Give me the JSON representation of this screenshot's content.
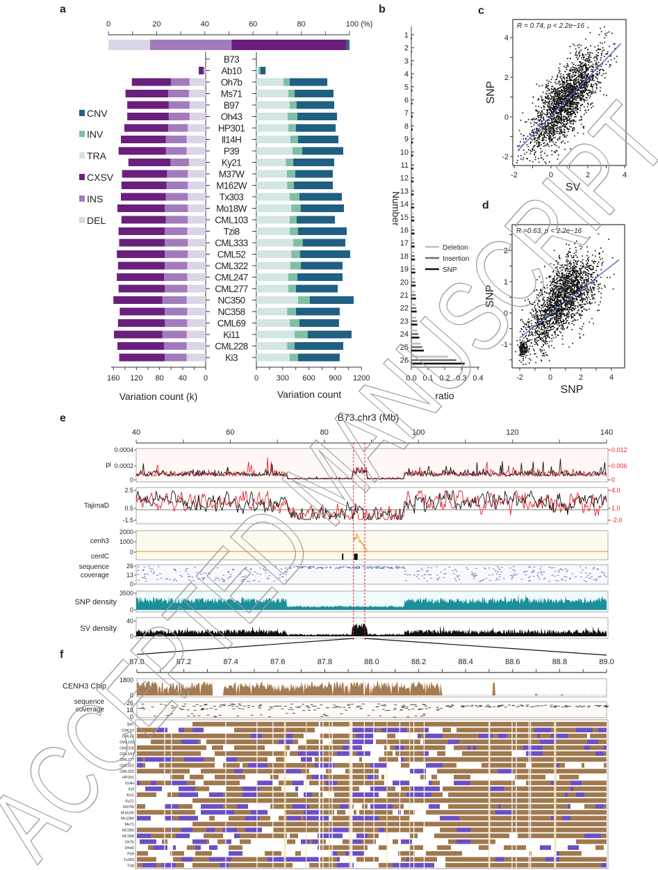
{
  "watermark": "ACCEPTED MANUSCRIPT",
  "panel_labels": {
    "a": "a",
    "b": "b",
    "c": "c",
    "d": "d",
    "e": "e",
    "f": "f"
  },
  "chart_data": [
    {
      "id": "a-top",
      "type": "bar",
      "orientation": "horizontal-stacked",
      "categories": [
        "DEL",
        "INS",
        "CXSV",
        "TRA/INV/CNV"
      ],
      "values": [
        17.3,
        33.8,
        47.7,
        1.2
      ],
      "unit": "%",
      "xlim": [
        0,
        100
      ],
      "ticks": [
        0,
        20,
        40,
        60,
        80,
        100
      ],
      "tick_labels": [
        "0",
        "20",
        "40",
        "60",
        "80",
        "100 (%)"
      ],
      "colors": [
        "#dcd5e8",
        "#a27bbd",
        "#6a1f7d",
        "#2c6a8a"
      ]
    },
    {
      "id": "a",
      "type": "bar",
      "orientation": "horizontal-stacked-diverging",
      "accessions": [
        {
          "name": "B73",
          "left": [
            0,
            0,
            0
          ],
          "right": [
            0,
            0,
            0
          ]
        },
        {
          "name": "Ab10",
          "left": [
            2,
            2,
            8
          ],
          "right": [
            25,
            20,
            60
          ]
        },
        {
          "name": "Oh7b",
          "left": [
            28,
            32,
            68
          ],
          "right": [
            310,
            70,
            430
          ]
        },
        {
          "name": "Ms71",
          "left": [
            29,
            36,
            74
          ],
          "right": [
            365,
            72,
            444
          ]
        },
        {
          "name": "B97",
          "left": [
            28,
            36,
            72
          ],
          "right": [
            381,
            79,
            429
          ]
        },
        {
          "name": "Oh43",
          "left": [
            28,
            36,
            72
          ],
          "right": [
            357,
            111,
            453
          ]
        },
        {
          "name": "HP301",
          "left": [
            31,
            34,
            76
          ],
          "right": [
            365,
            87,
            453
          ]
        },
        {
          "name": "Il14H",
          "left": [
            33,
            36,
            78
          ],
          "right": [
            389,
            87,
            461
          ]
        },
        {
          "name": "P39",
          "left": [
            33,
            36,
            82
          ],
          "right": [
            413,
            111,
            468
          ]
        },
        {
          "name": "Ky21",
          "left": [
            29,
            32,
            73
          ],
          "right": [
            336,
            85,
            468
          ]
        },
        {
          "name": "M37W",
          "left": [
            31,
            36,
            78
          ],
          "right": [
            349,
            95,
            429
          ]
        },
        {
          "name": "M162W",
          "left": [
            31,
            37,
            78
          ],
          "right": [
            352,
            77,
            444
          ]
        },
        {
          "name": "Tx303",
          "left": [
            31,
            38,
            78
          ],
          "right": [
            381,
            111,
            484
          ]
        },
        {
          "name": "Mo18W",
          "left": [
            31,
            40,
            82
          ],
          "right": [
            400,
            105,
            495
          ]
        },
        {
          "name": "CML103",
          "left": [
            31,
            38,
            77
          ],
          "right": [
            381,
            79,
            437
          ]
        },
        {
          "name": "Tzi8",
          "left": [
            32,
            39,
            80
          ],
          "right": [
            381,
            95,
            556
          ]
        },
        {
          "name": "CML333",
          "left": [
            31,
            40,
            79
          ],
          "right": [
            421,
            108,
            487
          ]
        },
        {
          "name": "CML52",
          "left": [
            31,
            40,
            83
          ],
          "right": [
            400,
            100,
            571
          ]
        },
        {
          "name": "CML322",
          "left": [
            32,
            39,
            81
          ],
          "right": [
            389,
            119,
            476
          ]
        },
        {
          "name": "CML247",
          "left": [
            32,
            40,
            82
          ],
          "right": [
            365,
            103,
            516
          ]
        },
        {
          "name": "CML277",
          "left": [
            32,
            39,
            80
          ],
          "right": [
            365,
            87,
            477
          ]
        },
        {
          "name": "NC350",
          "left": [
            33,
            42,
            85
          ],
          "right": [
            476,
            135,
            500
          ]
        },
        {
          "name": "NC358",
          "left": [
            32,
            39,
            78
          ],
          "right": [
            352,
            100,
            500
          ]
        },
        {
          "name": "CML69",
          "left": [
            32,
            39,
            81
          ],
          "right": [
            381,
            111,
            452
          ]
        },
        {
          "name": "Ki11",
          "left": [
            33,
            42,
            84
          ],
          "right": [
            437,
            150,
            500
          ]
        },
        {
          "name": "CML228",
          "left": [
            33,
            39,
            81
          ],
          "right": [
            352,
            85,
            555
          ]
        },
        {
          "name": "Ki3",
          "left": [
            33,
            38,
            79
          ],
          "right": [
            381,
            95,
            476
          ]
        }
      ],
      "left": {
        "series": [
          "DEL",
          "INS",
          "CXSV"
        ],
        "xlabel": "Variation count (k)",
        "xlim": [
          0,
          160
        ],
        "ticks": [
          160,
          120,
          80,
          40,
          0
        ],
        "tick_labels": [
          "160",
          "120",
          "80",
          "40",
          "0"
        ]
      },
      "right": {
        "series": [
          "TRA",
          "INV",
          "CNV"
        ],
        "xlabel": "Variation count",
        "xlim": [
          0,
          1200
        ],
        "ticks": [
          0,
          300,
          600,
          900,
          1200
        ],
        "tick_labels": [
          "0",
          "300",
          "600",
          "900",
          "1200"
        ]
      },
      "legend": [
        {
          "label": "CNV",
          "color": "#1f5f82"
        },
        {
          "label": "INV",
          "color": "#7fbfa6"
        },
        {
          "label": "TRA",
          "color": "#d3e5e4"
        },
        {
          "label": "CXSV",
          "color": "#6a1f7d"
        },
        {
          "label": "INS",
          "color": "#a27bbd"
        },
        {
          "label": "DEL",
          "color": "#dcd5e8"
        }
      ]
    },
    {
      "id": "b",
      "type": "bar",
      "orientation": "horizontal-grouped",
      "categories": [
        "1",
        "2",
        "3",
        "4",
        "5",
        "6",
        "7",
        "8",
        "9",
        "10",
        "11",
        "12",
        "13",
        "14",
        "15",
        "16",
        "17",
        "18",
        "19",
        "20",
        "21",
        "22",
        "23",
        "24",
        "25",
        "26"
      ],
      "series": [
        {
          "name": "Deletion",
          "color": "#bdbdbd",
          "values": [
            0.002,
            0.003,
            0.003,
            0.004,
            0.005,
            0.005,
            0.006,
            0.007,
            0.008,
            0.008,
            0.009,
            0.01,
            0.011,
            0.012,
            0.013,
            0.014,
            0.015,
            0.016,
            0.018,
            0.02,
            0.022,
            0.025,
            0.03,
            0.035,
            0.055,
            0.22
          ]
        },
        {
          "name": "Insertion",
          "color": "#6e6e6e",
          "values": [
            0.002,
            0.003,
            0.004,
            0.004,
            0.005,
            0.006,
            0.007,
            0.008,
            0.009,
            0.01,
            0.011,
            0.012,
            0.013,
            0.014,
            0.016,
            0.017,
            0.018,
            0.02,
            0.022,
            0.024,
            0.026,
            0.03,
            0.034,
            0.042,
            0.065,
            0.27
          ]
        },
        {
          "name": "SNP",
          "color": "#111111",
          "values": [
            0.003,
            0.003,
            0.004,
            0.005,
            0.006,
            0.007,
            0.008,
            0.009,
            0.01,
            0.011,
            0.012,
            0.013,
            0.014,
            0.016,
            0.017,
            0.019,
            0.02,
            0.022,
            0.024,
            0.026,
            0.028,
            0.032,
            0.036,
            0.048,
            0.075,
            0.32
          ]
        }
      ],
      "xlabel": "ratio",
      "ylabel": "Number",
      "xlim": [
        0,
        0.4
      ],
      "xticks": [
        0,
        0.1,
        0.2,
        0.3,
        0.4
      ],
      "xtick_labels": [
        "0.0",
        "0.1",
        "0.2",
        "0.3",
        "0.4"
      ],
      "legend_position": "right-middle"
    },
    {
      "id": "c",
      "type": "scatter",
      "annotation": "R = 0.74, p < 2.2e−16",
      "xlabel": "SV",
      "ylabel": "SNP",
      "xlim": [
        -2.08,
        4.08
      ],
      "ylim": [
        -2.46,
        4.91
      ],
      "xticks": [
        -2,
        0,
        2,
        4
      ],
      "xtick_labels": [
        "-2",
        "0",
        "2",
        "4"
      ],
      "yticks": [
        -2,
        0,
        2,
        4
      ],
      "ytick_labels": [
        "-2",
        "0",
        "2",
        "4"
      ],
      "regression": {
        "slope": 0.964,
        "intercept": 0.035,
        "x_range": [
          -1.8,
          3.8
        ],
        "color": "#4a6fc0"
      },
      "point_cloud": {
        "n": 2200,
        "x_mean": 0.8,
        "x_sd": 0.95,
        "r": 0.74
      }
    },
    {
      "id": "d",
      "type": "scatter",
      "annotation": "R =0.63, p < 2.2e−16",
      "xlabel": "SNP",
      "ylabel": "SNP",
      "xlim": [
        -2.5,
        4.86
      ],
      "ylim": [
        -1.76,
        2.82
      ],
      "xticks": [
        -2,
        0,
        2,
        4
      ],
      "xtick_labels": [
        "-2",
        "0",
        "2",
        "4"
      ],
      "yticks": [
        -1,
        0,
        1,
        2
      ],
      "ytick_labels": [
        "-1",
        "0",
        "1",
        "2"
      ],
      "regression": {
        "slope": 0.385,
        "intercept": -0.03,
        "x_range": [
          -2.0,
          4.5
        ],
        "color": "#4a6fc0"
      },
      "point_cloud": {
        "n": 2200,
        "x_mean": 0.8,
        "x_sd": 1.1,
        "r": 0.63
      }
    },
    {
      "id": "e",
      "type": "line",
      "title": "B73.chr3 (Mb)",
      "xlim": [
        40,
        140
      ],
      "xticks": [
        40,
        60,
        80,
        100,
        120,
        140
      ],
      "xtick_labels": [
        "40",
        "60",
        "80",
        "100",
        "120",
        "140"
      ],
      "highlight_region_mb": [
        86.2,
        88.6
      ],
      "low_diversity_region_mb": [
        72,
        97
      ],
      "tracks": [
        {
          "label": "pi",
          "yticks": [
            "0.0004",
            "0.0002",
            "0"
          ],
          "right_yticks": [
            "0.012",
            "0.006",
            "0"
          ],
          "colors": [
            "#111111",
            "#e0202a"
          ]
        },
        {
          "label": "TajimaD",
          "yticks": [
            "2.5",
            "0.5",
            "-1.5"
          ],
          "right_yticks": [
            "4.0",
            "1.0",
            "-2.0"
          ],
          "colors": [
            "#111111",
            "#e0202a"
          ]
        },
        {
          "label": "cenh3",
          "label2": "centC",
          "yticks": [
            "2000",
            "1000",
            "0"
          ],
          "peak_mb": [
            86.3,
            89.0
          ],
          "peak_value": 1800,
          "centC_marks_mb": [
            83.9,
            86.7
          ],
          "colors": [
            "#e8a33a",
            "#111111"
          ]
        },
        {
          "label": "sequence",
          "label2": "coverage",
          "yticks": [
            "26",
            "13",
            "0"
          ],
          "colors": [
            "#5a6fb8"
          ]
        },
        {
          "label": "SNP density",
          "yticks": [
            "3500",
            "0"
          ],
          "colors": [
            "#1b8f9a"
          ]
        },
        {
          "label": "SV density",
          "yticks": [
            "40",
            "0"
          ],
          "colors": [
            "#111111"
          ]
        }
      ]
    },
    {
      "id": "f",
      "type": "heatmap",
      "xlim": [
        87.0,
        89.0
      ],
      "xticks": [
        87.0,
        87.2,
        87.4,
        87.6,
        87.8,
        88.0,
        88.2,
        88.4,
        88.6,
        88.8,
        89.0
      ],
      "xtick_labels": [
        "87.0",
        "87.2",
        "87.4",
        "87.6",
        "87.8",
        "88.0",
        "88.2",
        "88.4",
        "88.6",
        "88.8",
        "89.0"
      ],
      "tracks": [
        {
          "label": "CENH3 Chip",
          "yticks": [
            "1800",
            "0"
          ],
          "color": "#a57b52"
        },
        {
          "label": "sequence",
          "label2": "coverage",
          "yticks": [
            "26",
            "13",
            "0"
          ]
        }
      ],
      "rows": [
        "B97",
        "CML52",
        "CML69",
        "CML103",
        "CML228",
        "CML247",
        "CML277",
        "CML322",
        "CML333",
        "HP301",
        "Il14H",
        "Ki3",
        "Ki11",
        "Ky21",
        "M37W",
        "M162W",
        "Mo18W",
        "Ms71",
        "NC350",
        "NC358",
        "Oh7b",
        "Oh43",
        "P39",
        "Tx303",
        "Tzi8"
      ],
      "colors": {
        "aligned": "#a0784e",
        "variant": "#6b4fc4",
        "absent": "#ffffff"
      }
    }
  ]
}
